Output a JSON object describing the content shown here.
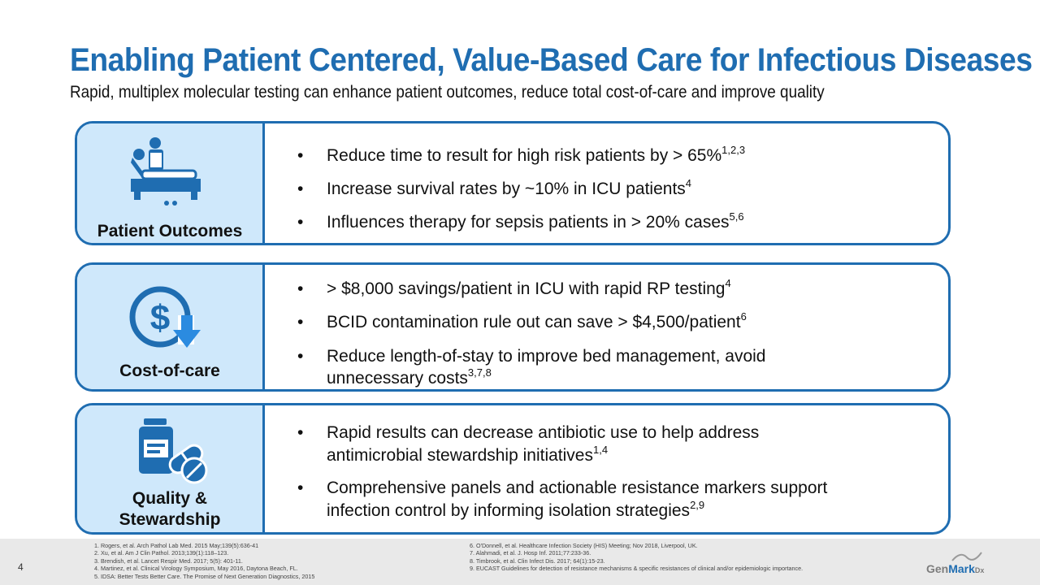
{
  "header": {
    "title": "Enabling Patient Centered, Value-Based Care for Infectious Diseases",
    "subtitle": "Rapid, multiplex molecular testing can enhance patient outcomes, reduce total cost-of-care and improve quality"
  },
  "sections": [
    {
      "label": "Patient Outcomes",
      "icon": "patient-bed-icon",
      "bullets": [
        {
          "text": "Reduce time to result for high risk patients by > 65%",
          "sup": "1,2,3"
        },
        {
          "text": "Increase survival rates by ~10% in ICU patients",
          "sup": "4"
        },
        {
          "text": "Influences therapy for sepsis patients in > 20% cases",
          "sup": "5,6"
        }
      ]
    },
    {
      "label": "Cost-of-care",
      "icon": "dollar-down-arrow-icon",
      "bullets": [
        {
          "text": "> $8,000 savings/patient in ICU with rapid RP testing",
          "sup": "4"
        },
        {
          "text": "BCID contamination rule out can save > $4,500/patient",
          "sup": "6"
        },
        {
          "line1": "Reduce length-of-stay to improve bed management, avoid",
          "line2": "unnecessary costs",
          "sup": "3,7,8"
        }
      ]
    },
    {
      "label_line1": "Quality &",
      "label_line2": "Stewardship",
      "icon": "medicine-bottle-pills-icon",
      "bullets": [
        {
          "line1": "Rapid results can decrease antibiotic use to help address",
          "line2": "antimicrobial stewardship initiatives",
          "sup": "1,4"
        },
        {
          "line1": "Comprehensive panels and actionable resistance markers support",
          "line2": "infection control by informing isolation strategies",
          "sup": "2,9"
        }
      ]
    }
  ],
  "bullet_char": "•",
  "footer": {
    "slide_number": "4",
    "refs_left": [
      "1.  Rogers, et al. Arch Pathol Lab Med. 2015 May;139(5):636-41",
      "2.  Xu, et al. Am J Clin Pathol. 2013;139(1):118–123.",
      "3.  Brendish, et al. Lancet Respir Med. 2017; 5(5): 401-11.",
      "4.  Martinez, et al. Clinical Virology Symposium, May 2016, Daytona Beach, FL.",
      "5.  IDSA: Better Tests Better Care. The Promise of Next Generation Diagnostics, 2015"
    ],
    "refs_right": [
      "6.  O'Donnell, et al. Healthcare Infection Society (HIS) Meeting; Nov 2018, Liverpool, UK.",
      "7.  Alahmadi, et al. J. Hosp Inf. 2011;77:233-36.",
      "8.  Timbrook, et al. Clin Infect Dis. 2017; 64(1):15-23.",
      "9.  EUCAST Guidelines for detection of resistance mechanisms & specific resistances of clinical and/or epidemiologic importance."
    ],
    "logo_gen": "Gen",
    "logo_mark": "Mark",
    "logo_dx": "Dx"
  },
  "colors": {
    "accent": "#1f6db1",
    "panel": "#cfe8fb",
    "footer_bg": "#e9e9e9"
  }
}
